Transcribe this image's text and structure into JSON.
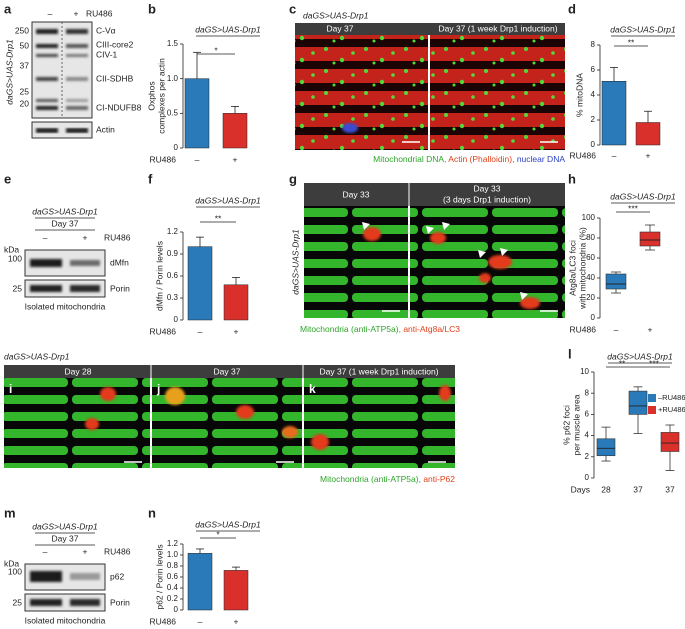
{
  "panels": {
    "a": {
      "letter": "a",
      "lanes": [
        "–",
        "+"
      ],
      "treatment": "RU486",
      "genotype": "daGS>UAS-Drp1",
      "kda": [
        "250",
        "50",
        "37",
        "25",
        "20"
      ],
      "bands": [
        "C-Vα",
        "CIII-core2",
        "CIV-1",
        "CII-SDHB",
        "CI-NDUFB8",
        "Actin"
      ]
    },
    "c": {
      "letter": "c",
      "genotype": "daGS>UAS-Drp1",
      "headers": [
        "Day 37",
        "Day 37 (1 week Drp1 induction)"
      ],
      "caption": [
        "Mitochondrial DNA,",
        "Actin (Phalloidin),",
        "nuclear DNA"
      ]
    },
    "e": {
      "letter": "e",
      "genotype": "daGS>UAS-Drp1",
      "day": "Day 37",
      "lanes": [
        "–",
        "+"
      ],
      "treatment": "RU486",
      "kda_title": "kDa",
      "kda": [
        "100",
        "25"
      ],
      "bands": [
        "dMfn",
        "Porin"
      ],
      "caption": "Isolated mitochondria"
    },
    "g": {
      "letter": "g",
      "genotype": "daGS>UAS-Drp1",
      "headers": [
        "Day 33",
        "Day 33",
        "(3 days Drp1 induction)"
      ],
      "caption": [
        "Mitochondria (anti-ATP5a),",
        "anti-Atg8a/LC3"
      ]
    },
    "ijk": {
      "genotype": "daGS>UAS-Drp1",
      "letters": [
        "i",
        "j",
        "k"
      ],
      "headers": [
        "Day 28",
        "Day 37",
        "Day 37 (1 week Drp1 induction)"
      ],
      "caption": [
        "Mitochondria (anti-ATP5a),",
        "anti-P62"
      ]
    },
    "m": {
      "letter": "m",
      "genotype": "daGS>UAS-Drp1",
      "day": "Day 37",
      "lanes": [
        "–",
        "+"
      ],
      "treatment": "RU486",
      "kda_title": "kDa",
      "kda": [
        "100",
        "25"
      ],
      "bands": [
        "p62",
        "Porin"
      ],
      "caption": "Isolated mitochondria"
    }
  },
  "chart_data": [
    {
      "type": "bar",
      "letter": "b",
      "title": "daGS>UAS-Drp1",
      "y_label": [
        "Oxphos",
        "complexes per actin"
      ],
      "x_label": "RU486",
      "categories": [
        "–",
        "+"
      ],
      "values": [
        1.0,
        0.5
      ],
      "errors": [
        0.38,
        0.1
      ],
      "colors": [
        "#2a79b8",
        "#d9302c"
      ],
      "ylim": [
        0,
        1.5
      ],
      "yticks": [
        0,
        0.5,
        {
          "value": 1,
          "label": "1.0"
        },
        1.5
      ],
      "significance": [
        "*"
      ]
    },
    {
      "type": "bar",
      "letter": "d",
      "title": "daGS>UAS-Drp1",
      "y_label": [
        "% mitoDNA"
      ],
      "x_label": "RU486",
      "categories": [
        "–",
        "+"
      ],
      "values": [
        5.1,
        1.8
      ],
      "errors": [
        1.1,
        0.9
      ],
      "colors": [
        "#2a79b8",
        "#d9302c"
      ],
      "ylim": [
        0,
        8
      ],
      "yticks": [
        0,
        2,
        4,
        6,
        8
      ],
      "significance": [
        "**"
      ]
    },
    {
      "type": "bar",
      "letter": "f",
      "title": "daGS>UAS-Drp1",
      "y_label": [
        "dMfn / Porin levels"
      ],
      "x_label": "RU486",
      "categories": [
        "–",
        "+"
      ],
      "values": [
        1.0,
        0.48
      ],
      "errors": [
        0.13,
        0.1
      ],
      "colors": [
        "#2a79b8",
        "#d9302c"
      ],
      "ylim": [
        0,
        1.2
      ],
      "yticks": [
        0,
        0.3,
        0.6,
        0.9,
        1.2
      ],
      "significance": [
        "**"
      ]
    },
    {
      "type": "box",
      "letter": "h",
      "title": "daGS>UAS-Drp1",
      "y_label": [
        "Atg8a/LC3 foci",
        "with mitochondria (%)"
      ],
      "x_label": "RU486",
      "categories": [
        "–",
        "+"
      ],
      "colors": [
        "#2a79b8",
        "#d9302c"
      ],
      "min": [
        25,
        68
      ],
      "q1": [
        29,
        72
      ],
      "median": [
        34,
        78
      ],
      "q3": [
        44,
        86
      ],
      "max": [
        46,
        93
      ],
      "ylim": [
        0,
        100
      ],
      "yticks": [
        0,
        20,
        40,
        60,
        80,
        100
      ],
      "significance": [
        "***"
      ]
    },
    {
      "type": "box",
      "letter": "l",
      "title": "daGS>UAS-Drp1",
      "y_label": [
        "% p62 foci",
        "per muscle area"
      ],
      "x_label": "Days",
      "categories": [
        "28",
        "37",
        "37"
      ],
      "series": [
        {
          "name": "–RU486",
          "color": "#2a79b8",
          "min": [
            1.6,
            4.2,
            null
          ],
          "q1": [
            2.1,
            6.0,
            null
          ],
          "median": [
            2.8,
            6.8,
            null
          ],
          "q3": [
            3.7,
            8.2,
            null
          ],
          "max": [
            4.8,
            8.6,
            null
          ]
        },
        {
          "name": "+RU486",
          "color": "#d9302c",
          "min": [
            null,
            null,
            0.7
          ],
          "q1": [
            null,
            null,
            2.5
          ],
          "median": [
            null,
            null,
            3.3
          ],
          "q3": [
            null,
            null,
            4.3
          ],
          "max": [
            null,
            null,
            5.0
          ]
        }
      ],
      "ylim": [
        0,
        10
      ],
      "yticks": [
        0,
        2,
        4,
        6,
        8,
        10
      ],
      "significance": [
        "**",
        "***"
      ]
    },
    {
      "type": "bar",
      "letter": "n",
      "title": "daGS>UAS-Drp1",
      "y_label": [
        "p62 / Porin levels"
      ],
      "x_label": "RU486",
      "categories": [
        "–",
        "+"
      ],
      "values": [
        1.03,
        0.72
      ],
      "errors": [
        0.08,
        0.06
      ],
      "colors": [
        "#2a79b8",
        "#d9302c"
      ],
      "ylim": [
        0,
        1.2
      ],
      "yticks": [
        0,
        0.2,
        0.4,
        0.6,
        0.8,
        {
          "value": 1,
          "label": "1.0"
        },
        1.2
      ],
      "significance": [
        "*"
      ]
    }
  ]
}
